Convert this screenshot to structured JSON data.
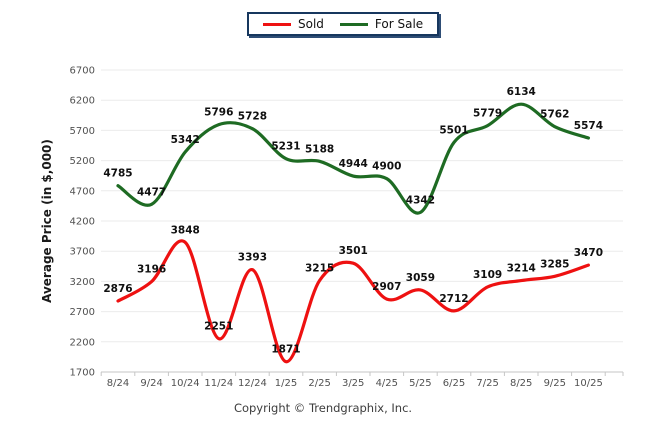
{
  "legend": {
    "items": [
      {
        "label": "Sold",
        "color": "#ee1111"
      },
      {
        "label": "For Sale",
        "color": "#1e6b23"
      }
    ]
  },
  "footer": {
    "copyright": "Copyright © Trendgraphix, Inc."
  },
  "colors": {
    "grid": "#ebebeb",
    "axis": "#c6c6c6",
    "tick_text": "#515151",
    "data_label_text": "#101010",
    "legend_border": "#17375e"
  },
  "chart_data": {
    "type": "line",
    "title": "",
    "xlabel": "",
    "ylabel": "Average Price (in $,000)",
    "ylim": [
      1700,
      6700
    ],
    "ytick_step": 500,
    "grid": "horizontal",
    "legend_position": "top",
    "smooth": true,
    "data_labels": true,
    "categories": [
      "8/24",
      "9/24",
      "10/24",
      "11/24",
      "12/24",
      "1/25",
      "2/25",
      "3/25",
      "4/25",
      "5/25",
      "6/25",
      "7/25",
      "8/25",
      "9/25",
      "10/25"
    ],
    "series": [
      {
        "name": "Sold",
        "color": "#ee1111",
        "values": [
          2876,
          3196,
          3848,
          2251,
          3393,
          1871,
          3215,
          3501,
          2907,
          3059,
          2712,
          3109,
          3214,
          3285,
          3470
        ]
      },
      {
        "name": "For Sale",
        "color": "#1e6b23",
        "values": [
          4785,
          4477,
          5342,
          5796,
          5728,
          5231,
          5188,
          4944,
          4900,
          4342,
          5501,
          5779,
          6134,
          5762,
          5574
        ]
      }
    ]
  }
}
